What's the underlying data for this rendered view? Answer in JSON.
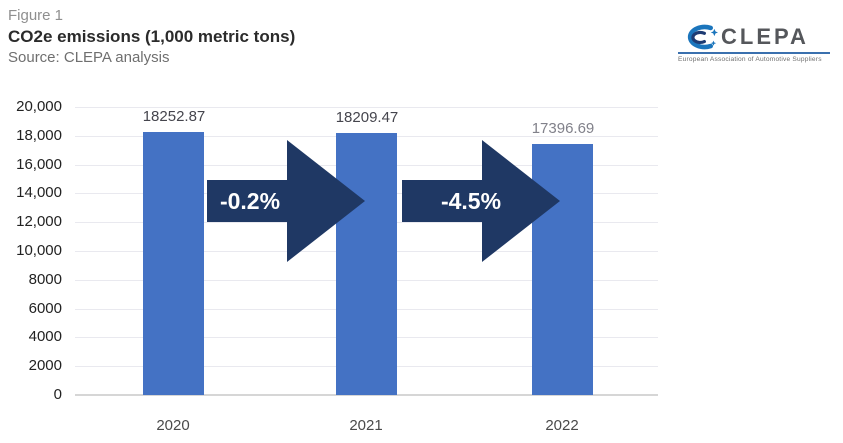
{
  "header": {
    "figure_label": "Figure 1",
    "title": "CO2e emissions (1,000 metric tons)",
    "source": "Source: CLEPA analysis"
  },
  "logo": {
    "name": "CLEPA",
    "tagline": "European Association of Automotive Suppliers",
    "icon": "clepa-swoosh-icon",
    "accent_blue": "#1b75bc",
    "dark_blue": "#1d3b73",
    "wordmark_gray": "#55575b"
  },
  "chart_data": {
    "type": "bar",
    "title": "CO2e emissions (1,000 metric tons)",
    "categories": [
      "2020",
      "2021",
      "2022"
    ],
    "values": [
      18252.87,
      18209.47,
      17396.69
    ],
    "data_labels": [
      "18252.87",
      "18209.47",
      "17396.69"
    ],
    "ylim": [
      0,
      20000
    ],
    "ytick_interval": 2000,
    "yticks": [
      "20,000",
      "18,000",
      "16,000",
      "14,000",
      "12,000",
      "10,000",
      "8000",
      "6000",
      "4000",
      "2000",
      "0"
    ],
    "grid": true,
    "legend": "none",
    "bar_color": "#4472c4",
    "annotation_color": "#1f3864",
    "annotations": [
      {
        "label": "-0.2%",
        "from": "2020",
        "to": "2021"
      },
      {
        "label": "-4.5%",
        "from": "2021",
        "to": "2022"
      }
    ]
  }
}
